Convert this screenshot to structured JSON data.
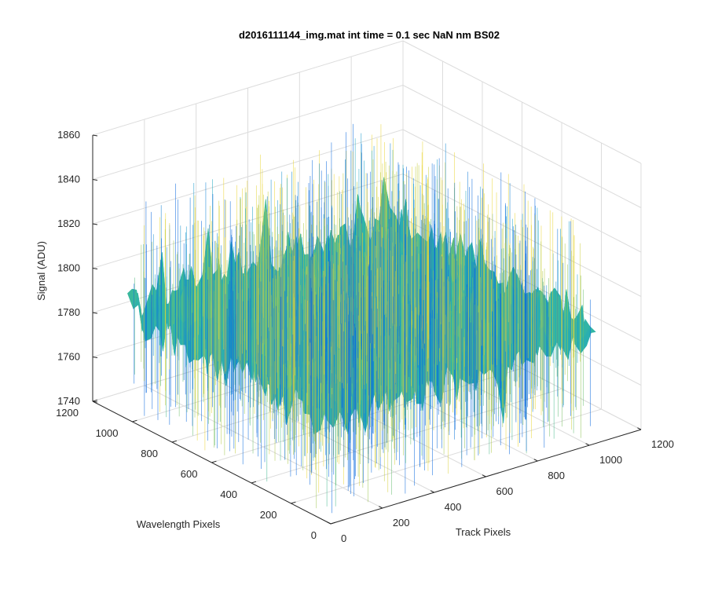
{
  "chart_data": {
    "type": "surface",
    "title": "d2016111144_img.mat int time = 0.1 sec  NaN nm BS02",
    "xlabel": "Track Pixels",
    "ylabel": "Wavelength Pixels",
    "zlabel": "Signal (ADU)",
    "xlim": [
      0,
      1200
    ],
    "ylim": [
      0,
      1200
    ],
    "zlim": [
      1740,
      1860
    ],
    "x_ticks": [
      0,
      200,
      400,
      600,
      800,
      1000,
      1200
    ],
    "y_ticks": [
      0,
      200,
      400,
      600,
      800,
      1000,
      1200
    ],
    "z_ticks": [
      1740,
      1760,
      1780,
      1800,
      1820,
      1840,
      1860
    ],
    "x_tick_labels": [
      "0",
      "200",
      "400",
      "600",
      "800",
      "1000",
      "1200"
    ],
    "y_tick_labels": [
      "0",
      "200",
      "400",
      "600",
      "800",
      "1000",
      "1200"
    ],
    "z_tick_labels": [
      "1740",
      "1760",
      "1780",
      "1800",
      "1820",
      "1840",
      "1860"
    ],
    "data_extent": {
      "x": [
        0,
        1024
      ],
      "y": [
        0,
        1024
      ]
    },
    "signal_mean": 1790,
    "signal_min": 1742,
    "signal_max": 1848,
    "colormap": [
      "#0b68dd",
      "#1aa3c8",
      "#36b89f",
      "#8cc35a",
      "#e9d63a"
    ],
    "grid": true
  }
}
